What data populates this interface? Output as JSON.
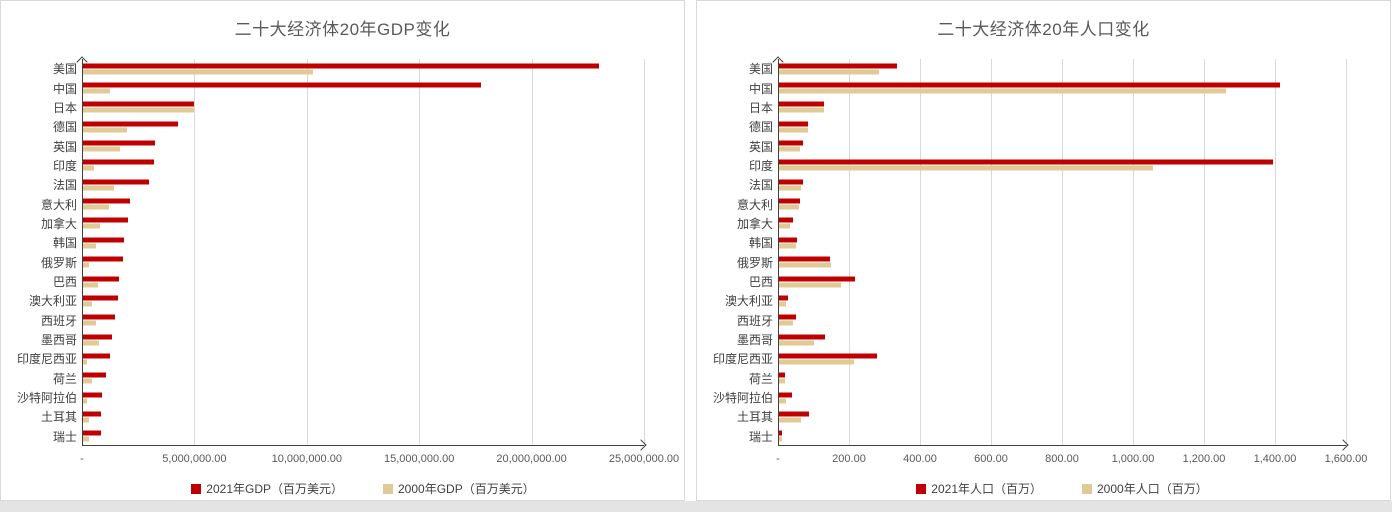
{
  "colors": {
    "series_2021": "#c00000",
    "series_2000": "#e0cb96",
    "gridline": "#d9d9d9",
    "axis": "#404040",
    "title_text": "#595959",
    "panel_border": "#d9d9d9",
    "bottom_strip": "#e4e4e4"
  },
  "chart_data": [
    {
      "type": "bar",
      "orientation": "horizontal",
      "title": "二十大经济体20年GDP变化",
      "xlabel": "",
      "ylabel": "",
      "xlim": [
        0,
        25000000
      ],
      "grid": true,
      "legend_position": "bottom",
      "categories": [
        "美国",
        "中国",
        "日本",
        "德国",
        "英国",
        "印度",
        "法国",
        "意大利",
        "加拿大",
        "韩国",
        "俄罗斯",
        "巴西",
        "澳大利亚",
        "西班牙",
        "墨西哥",
        "印度尼西亚",
        "荷兰",
        "沙特阿拉伯",
        "土耳其",
        "瑞士"
      ],
      "series": [
        {
          "name": "2021年GDP（百万美元）",
          "color_key": "series_2021",
          "values": [
            22996100,
            17734063,
            4937422,
            4223116,
            3186860,
            3173398,
            2937473,
            2099880,
            1988336,
            1810966,
            1775800,
            1608981,
            1542660,
            1425277,
            1293038,
            1186093,
            1018007,
            833541,
            819034,
            812867
          ]
        },
        {
          "name": "2000年GDP（百万美元）",
          "color_key": "series_2000",
          "values": [
            10250950,
            1211347,
            4968359,
            1943146,
            1665012,
            468395,
            1362249,
            1143830,
            744774,
            576178,
            259708,
            655448,
            415223,
            597537,
            707907,
            165021,
            416366,
            189515,
            274300,
            271688
          ]
        }
      ],
      "x_ticks": [
        {
          "v": 0,
          "label": "-"
        },
        {
          "v": 5000000,
          "label": "5,000,000.00"
        },
        {
          "v": 10000000,
          "label": "10,000,000.00"
        },
        {
          "v": 15000000,
          "label": "15,000,000.00"
        },
        {
          "v": 20000000,
          "label": "20,000,000.00"
        },
        {
          "v": 25000000,
          "label": "25,000,000.00"
        }
      ]
    },
    {
      "type": "bar",
      "orientation": "horizontal",
      "title": "二十大经济体20年人口变化",
      "xlabel": "",
      "ylabel": "",
      "xlim": [
        0,
        1600
      ],
      "grid": true,
      "legend_position": "bottom",
      "categories": [
        "美国",
        "中国",
        "日本",
        "德国",
        "英国",
        "印度",
        "法国",
        "意大利",
        "加拿大",
        "韩国",
        "俄罗斯",
        "巴西",
        "澳大利亚",
        "西班牙",
        "墨西哥",
        "印度尼西亚",
        "荷兰",
        "沙特阿拉伯",
        "土耳其",
        "瑞士"
      ],
      "series": [
        {
          "name": "2021年人口（百万）",
          "color_key": "series_2021",
          "values": [
            331.89,
            1412.36,
            125.68,
            83.2,
            67.33,
            1393.41,
            67.75,
            59.07,
            38.25,
            51.74,
            143.45,
            213.99,
            25.69,
            47.33,
            130.26,
            276.36,
            17.53,
            35.34,
            84.78,
            8.7
          ]
        },
        {
          "name": "2000年人口（百万）",
          "color_key": "series_2000",
          "values": [
            282.16,
            1262.65,
            126.84,
            82.21,
            58.89,
            1056.58,
            60.92,
            56.94,
            30.69,
            47.01,
            146.6,
            174.79,
            19.15,
            40.57,
            97.87,
            211.51,
            15.93,
            20.66,
            63.24,
            7.18
          ]
        }
      ],
      "x_ticks": [
        {
          "v": 0,
          "label": "-"
        },
        {
          "v": 200,
          "label": "200.00"
        },
        {
          "v": 400,
          "label": "400.00"
        },
        {
          "v": 600,
          "label": "600.00"
        },
        {
          "v": 800,
          "label": "800.00"
        },
        {
          "v": 1000,
          "label": "1,000.00"
        },
        {
          "v": 1200,
          "label": "1,200.00"
        },
        {
          "v": 1400,
          "label": "1,400.00"
        },
        {
          "v": 1600,
          "label": "1,600.00"
        }
      ]
    }
  ]
}
